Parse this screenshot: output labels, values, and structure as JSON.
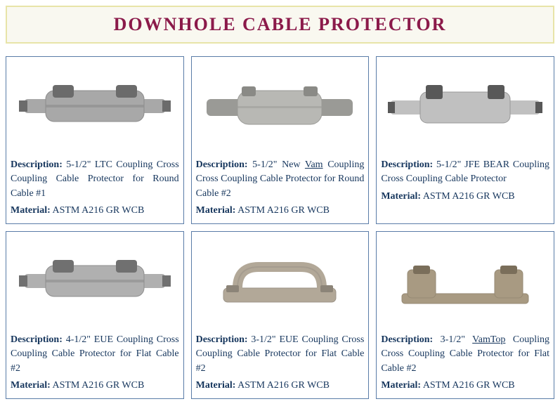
{
  "page": {
    "title": "DOWNHOLE CABLE PROTECTOR",
    "title_color": "#8b1a4a",
    "title_bg": "#f9f8f0",
    "title_border": "#e8e4a8",
    "card_border": "#5a7ca8",
    "text_color": "#16365d"
  },
  "labels": {
    "description": "Description:",
    "material": "Material:"
  },
  "products": [
    {
      "description": "5-1/2\" LTC Coupling Cross Coupling Cable Protector for Round Cable #1",
      "material": "ASTM A216 GR WCB",
      "underline_word": null,
      "shape": "coupling-round",
      "colors": {
        "body": "#a8a8a8",
        "clamp": "#6b6b6b",
        "shadow": "#8c8c8c"
      }
    },
    {
      "description": "5-1/2\" New Vam Coupling Cross Coupling Cable Protector for Round Cable #2",
      "material": "ASTM A216 GR WCB",
      "underline_word": "Vam",
      "shape": "coupling-wrap",
      "colors": {
        "body": "#b8b8b4",
        "clamp": "#8a8a86",
        "shadow": "#9a9a96"
      }
    },
    {
      "description": "5-1/2\" JFE BEAR Coupling Cross Coupling Cable Protector",
      "material": "ASTM A216 GR WCB",
      "underline_word": null,
      "shape": "coupling-double",
      "colors": {
        "body": "#c0c0c0",
        "clamp": "#585858",
        "shadow": "#989898"
      }
    },
    {
      "description": "4-1/2\" EUE Coupling Cross Coupling Cable Protector for Flat Cable #2",
      "material": "ASTM A216 GR WCB",
      "underline_word": null,
      "shape": "coupling-round",
      "colors": {
        "body": "#b0b0b0",
        "clamp": "#707070",
        "shadow": "#8e8e8e"
      }
    },
    {
      "description": "3-1/2\" EUE Coupling Cross Coupling Cable Protector for Flat Cable #2",
      "material": "ASTM A216 GR WCB",
      "underline_word": null,
      "shape": "handle",
      "colors": {
        "body": "#b2a898",
        "clamp": "#8c8478",
        "shadow": "#9c9488"
      }
    },
    {
      "description": "3-1/2\" VamTop Coupling Cross Coupling Cable Protector for Flat Cable #2",
      "material": "ASTM A216 GR WCB",
      "underline_word": "VamTop",
      "shape": "bracket",
      "colors": {
        "body": "#a89a82",
        "clamp": "#7a6e5a",
        "shadow": "#968a74"
      }
    }
  ]
}
